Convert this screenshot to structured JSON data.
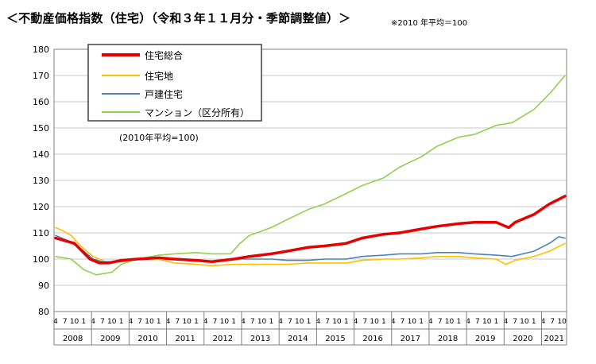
{
  "header": {
    "title": "＜不動産価格指数（住宅）（令和３年１１月分・季節調整値）＞",
    "note": "※2010 年平均＝100"
  },
  "chart_data": {
    "type": "line",
    "title": "",
    "xlabel": "",
    "ylabel": "",
    "annotation": "(2010年平均=100)",
    "ylim": [
      80,
      180
    ],
    "y_ticks": [
      "80",
      "90",
      "100",
      "110",
      "120",
      "130",
      "140",
      "150",
      "160",
      "170",
      "180"
    ],
    "grid": "horizontal",
    "legend_position": "top-left",
    "x_start": "2008-04",
    "x_end": "2021-11",
    "x_tick_labels": [
      "4",
      "7",
      "10",
      "1"
    ],
    "years": [
      "2008",
      "2009",
      "2010",
      "2011",
      "2012",
      "2013",
      "2014",
      "2015",
      "2016",
      "2017",
      "2018",
      "2019",
      "2020",
      "2021"
    ],
    "series": [
      {
        "name": "住宅総合",
        "color": "#e60000",
        "key_points": [
          [
            "2008-04",
            108
          ],
          [
            "2008-10",
            106
          ],
          [
            "2009-03",
            100
          ],
          [
            "2009-06",
            98.5
          ],
          [
            "2009-09",
            98.5
          ],
          [
            "2010-01",
            99.5
          ],
          [
            "2010-06",
            100
          ],
          [
            "2011-01",
            100.5
          ],
          [
            "2011-06",
            100
          ],
          [
            "2012-01",
            99.5
          ],
          [
            "2012-06",
            99
          ],
          [
            "2013-01",
            100
          ],
          [
            "2013-06",
            101
          ],
          [
            "2014-01",
            102
          ],
          [
            "2014-06",
            103
          ],
          [
            "2015-01",
            104.5
          ],
          [
            "2015-06",
            105
          ],
          [
            "2016-01",
            106
          ],
          [
            "2016-06",
            108
          ],
          [
            "2017-01",
            109.5
          ],
          [
            "2017-06",
            110
          ],
          [
            "2018-01",
            111.5
          ],
          [
            "2018-06",
            112.5
          ],
          [
            "2019-01",
            113.5
          ],
          [
            "2019-06",
            114
          ],
          [
            "2020-01",
            114
          ],
          [
            "2020-05",
            112
          ],
          [
            "2020-07",
            114
          ],
          [
            "2021-01",
            117
          ],
          [
            "2021-06",
            121
          ],
          [
            "2021-11",
            124
          ]
        ]
      },
      {
        "name": "住宅地",
        "color": "#ffc000",
        "key_points": [
          [
            "2008-04",
            112
          ],
          [
            "2008-06",
            111
          ],
          [
            "2008-09",
            109
          ],
          [
            "2008-12",
            105
          ],
          [
            "2009-04",
            101
          ],
          [
            "2009-08",
            99
          ],
          [
            "2010-01",
            99
          ],
          [
            "2010-06",
            100
          ],
          [
            "2011-01",
            100
          ],
          [
            "2011-06",
            98.5
          ],
          [
            "2012-01",
            98
          ],
          [
            "2012-06",
            97.5
          ],
          [
            "2013-01",
            98
          ],
          [
            "2013-06",
            98
          ],
          [
            "2014-01",
            98
          ],
          [
            "2014-06",
            98
          ],
          [
            "2015-01",
            98.5
          ],
          [
            "2015-06",
            98.5
          ],
          [
            "2016-01",
            98.5
          ],
          [
            "2016-06",
            99.5
          ],
          [
            "2017-01",
            100
          ],
          [
            "2017-06",
            100
          ],
          [
            "2018-01",
            100.5
          ],
          [
            "2018-06",
            101
          ],
          [
            "2019-01",
            101
          ],
          [
            "2019-06",
            100.5
          ],
          [
            "2020-01",
            100
          ],
          [
            "2020-04",
            98
          ],
          [
            "2020-07",
            99.5
          ],
          [
            "2021-01",
            101
          ],
          [
            "2021-06",
            103
          ],
          [
            "2021-11",
            106
          ]
        ]
      },
      {
        "name": "戸建住宅",
        "color": "#4f81bd",
        "key_points": [
          [
            "2008-04",
            109
          ],
          [
            "2008-08",
            107
          ],
          [
            "2008-12",
            104
          ],
          [
            "2009-04",
            100
          ],
          [
            "2009-07",
            99
          ],
          [
            "2010-01",
            99
          ],
          [
            "2010-06",
            100
          ],
          [
            "2011-01",
            100.5
          ],
          [
            "2011-06",
            100
          ],
          [
            "2012-01",
            99.5
          ],
          [
            "2012-06",
            99
          ],
          [
            "2013-01",
            100
          ],
          [
            "2013-06",
            100
          ],
          [
            "2014-01",
            100
          ],
          [
            "2014-06",
            99.5
          ],
          [
            "2015-01",
            99.5
          ],
          [
            "2015-06",
            100
          ],
          [
            "2016-01",
            100
          ],
          [
            "2016-06",
            101
          ],
          [
            "2017-01",
            101.5
          ],
          [
            "2017-06",
            102
          ],
          [
            "2018-01",
            102
          ],
          [
            "2018-06",
            102.5
          ],
          [
            "2019-01",
            102.5
          ],
          [
            "2019-06",
            102
          ],
          [
            "2020-01",
            101.5
          ],
          [
            "2020-06",
            101
          ],
          [
            "2021-01",
            103
          ],
          [
            "2021-06",
            106
          ],
          [
            "2021-09",
            108.5
          ],
          [
            "2021-11",
            108
          ]
        ]
      },
      {
        "name": "マンション（区分所有）",
        "color": "#92d050",
        "key_points": [
          [
            "2008-04",
            101
          ],
          [
            "2008-09",
            100
          ],
          [
            "2009-01",
            96
          ],
          [
            "2009-05",
            94
          ],
          [
            "2009-10",
            95
          ],
          [
            "2010-01",
            98
          ],
          [
            "2010-06",
            100
          ],
          [
            "2011-01",
            101.5
          ],
          [
            "2011-06",
            102
          ],
          [
            "2012-01",
            102.5
          ],
          [
            "2012-06",
            102
          ],
          [
            "2012-12",
            102
          ],
          [
            "2013-03",
            106
          ],
          [
            "2013-06",
            109
          ],
          [
            "2014-01",
            112
          ],
          [
            "2014-06",
            115
          ],
          [
            "2015-01",
            119
          ],
          [
            "2015-06",
            121
          ],
          [
            "2016-01",
            125
          ],
          [
            "2016-06",
            128
          ],
          [
            "2017-01",
            131
          ],
          [
            "2017-06",
            135
          ],
          [
            "2018-01",
            139
          ],
          [
            "2018-06",
            143
          ],
          [
            "2019-01",
            146.5
          ],
          [
            "2019-06",
            147.5
          ],
          [
            "2020-01",
            151
          ],
          [
            "2020-06",
            152
          ],
          [
            "2021-01",
            157
          ],
          [
            "2021-06",
            163
          ],
          [
            "2021-11",
            170
          ]
        ]
      }
    ]
  }
}
